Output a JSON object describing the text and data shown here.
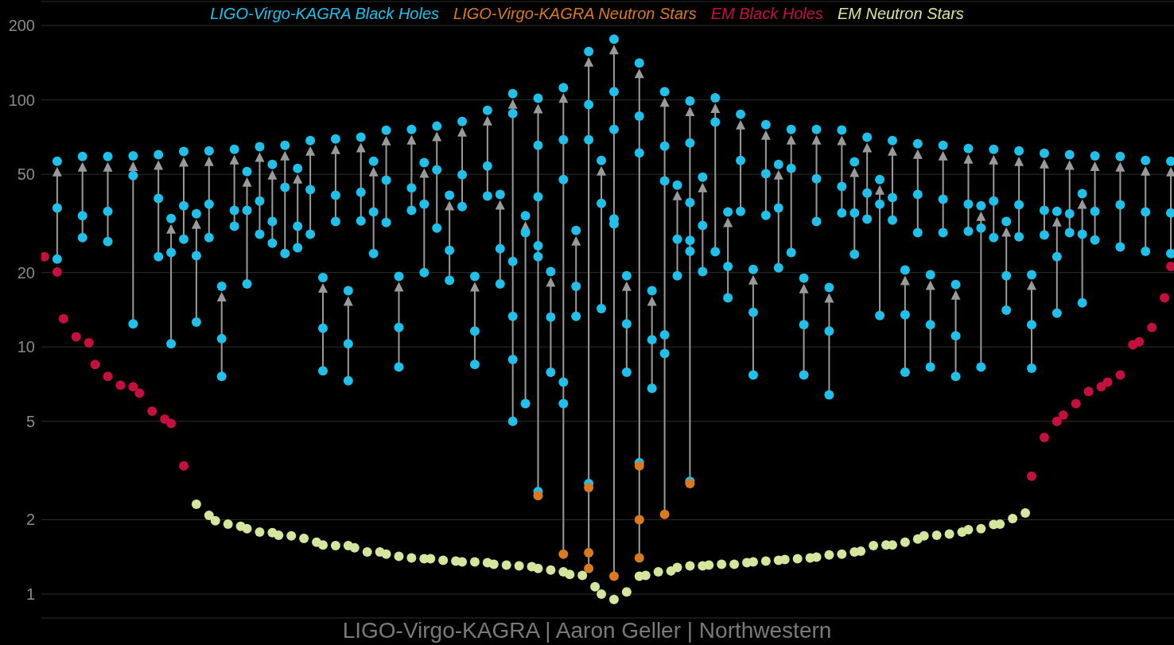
{
  "chart_data": {
    "type": "scatter",
    "log": "y",
    "ylim": [
      0.8,
      250
    ],
    "yticks": [
      1,
      2,
      5,
      10,
      20,
      50,
      100,
      200
    ],
    "tick_labels": "y",
    "grid": "y",
    "annotations": [
      "LIGO-Virgo-KAGRA | Aaron Geller | Northwestern"
    ],
    "categories": [
      null,
      null,
      null,
      null,
      null,
      null,
      null,
      null,
      null,
      null,
      null,
      null,
      null,
      null,
      null,
      null,
      null,
      null,
      null,
      null,
      null,
      null,
      null,
      null,
      null,
      null,
      null,
      null,
      null,
      null,
      null,
      null,
      null,
      null,
      null,
      null,
      null,
      null,
      null,
      null,
      null,
      null,
      null,
      null,
      null,
      null,
      null,
      null,
      null,
      null,
      null,
      null,
      null,
      null,
      null,
      null,
      null,
      null,
      null,
      null,
      null,
      null,
      null,
      null,
      null,
      null,
      null,
      null,
      null,
      null,
      null,
      null,
      null,
      null,
      null,
      null,
      null,
      null,
      null,
      null,
      null,
      null,
      null,
      null,
      null,
      null,
      null,
      null,
      null,
      null,
      null,
      null,
      null,
      null,
      null,
      null,
      null,
      null,
      null,
      null,
      null,
      null,
      null,
      null,
      null,
      null,
      null,
      null,
      null,
      null,
      null,
      null,
      null,
      null,
      null,
      null,
      null,
      null,
      null,
      null,
      null,
      null,
      null,
      null,
      null,
      null,
      null,
      null,
      null,
      null,
      null,
      null,
      null,
      null,
      null,
      null,
      null,
      null,
      null,
      null,
      null,
      null,
      null,
      null,
      null,
      null,
      null,
      null,
      null,
      null,
      null,
      null,
      null,
      null,
      null,
      null,
      null,
      null,
      null,
      null,
      null,
      null,
      null,
      null,
      null,
      null,
      null,
      null,
      null,
      null,
      null,
      null,
      null,
      null,
      null,
      null,
      null,
      null,
      null
    ],
    "series": [
      {
        "name": "LIGO-Virgo-KAGRA Black Holes",
        "color": "#1fc0ea",
        "values": [
          null,
          null,
          56.5,
          null,
          null,
          null,
          59,
          null,
          null,
          null,
          59,
          null,
          null,
          null,
          59.4,
          null,
          null,
          null,
          60,
          null,
          33.1,
          null,
          61.8,
          null,
          34.6,
          null,
          62.2,
          null,
          17.6,
          null,
          63.1,
          null,
          51.3,
          null,
          64.6,
          null,
          54.8,
          null,
          65.5,
          null,
          52.8,
          null,
          68.5,
          null,
          19.1,
          null,
          69.5,
          null,
          16.9,
          null,
          70.6,
          null,
          56.5,
          null,
          75.4,
          null,
          19.3,
          null,
          76,
          null,
          55.7,
          null,
          78.3,
          null,
          41.1,
          null,
          81.8,
          null,
          19.3,
          null,
          90.8,
          null,
          41.4,
          null,
          106,
          null,
          34,
          null,
          101.5,
          null,
          20.2,
          null,
          112,
          null,
          29.6,
          null,
          157,
          null,
          56.9,
          null,
          176,
          null,
          19.4,
          null,
          141,
          null,
          16.9,
          null,
          108,
          null,
          45.2,
          null,
          99,
          null,
          48.7,
          null,
          102,
          null,
          35.2,
          null,
          87.5,
          null,
          20.6,
          null,
          79.4,
          null,
          54.8,
          null,
          76,
          null,
          19,
          null,
          76,
          null,
          17.4,
          null,
          75.5,
          null,
          56.1,
          null,
          70.6,
          null,
          47.6,
          null,
          68.5,
          null,
          20.5,
          null,
          66.5,
          null,
          19.6,
          null,
          65.5,
          null,
          17.9,
          null,
          63.6,
          null,
          37.3,
          null,
          63.1,
          null,
          32.2,
          null,
          62.2,
          null,
          19.6,
          null,
          60.8,
          null,
          35.4,
          null,
          60,
          null,
          41.7,
          null,
          59.4,
          null,
          null,
          null,
          59,
          null,
          null,
          null,
          56.9,
          null,
          null,
          null,
          56.5
        ]
      },
      {
        "color": "#1fc0ea",
        "values": [
          null,
          null,
          36.5,
          null,
          null,
          null,
          34,
          null,
          null,
          null,
          35.4,
          null,
          null,
          null,
          49.4,
          null,
          null,
          null,
          39.9,
          null,
          24.1,
          null,
          37.3,
          null,
          23.4,
          null,
          37.8,
          null,
          10.8,
          null,
          35.7,
          null,
          35.7,
          null,
          39,
          null,
          32.2,
          null,
          44.3,
          null,
          30.8,
          null,
          43.3,
          null,
          11.9,
          null,
          41.1,
          null,
          10.3,
          null,
          42.3,
          null,
          35.2,
          null,
          47.3,
          null,
          12,
          null,
          44,
          null,
          37.8,
          null,
          52.1,
          null,
          24.6,
          null,
          49.8,
          null,
          11.6,
          null,
          54,
          null,
          25,
          null,
          88,
          null,
          29,
          null,
          65.5,
          null,
          13.2,
          null,
          69,
          null,
          17.6,
          null,
          95.7,
          null,
          38.1,
          null,
          108,
          null,
          12.4,
          null,
          86,
          null,
          10.7,
          null,
          65,
          null,
          27.3,
          null,
          67,
          null,
          31,
          null,
          81.3,
          null,
          21.2,
          null,
          56.9,
          null,
          13.8,
          null,
          50.2,
          null,
          36.5,
          null,
          52.8,
          null,
          12.3,
          null,
          48,
          null,
          11.6,
          null,
          44.6,
          null,
          34.9,
          null,
          42,
          null,
          37.8,
          null,
          40.2,
          null,
          13.5,
          null,
          41.4,
          null,
          12.3,
          null,
          39.6,
          null,
          11.1,
          null,
          37.8,
          null,
          30.3,
          null,
          39,
          null,
          19.4,
          null,
          37.6,
          null,
          12.3,
          null,
          35.7,
          null,
          23.2,
          null,
          34.6,
          null,
          28.6,
          null,
          35.4,
          null,
          null,
          null,
          37.6,
          null,
          null,
          null,
          35.2,
          null,
          null,
          null,
          34.9
        ]
      },
      {
        "color": "#1fc0ea",
        "values": [
          null,
          null,
          22.7,
          null,
          null,
          null,
          27.7,
          null,
          null,
          null,
          26.7,
          null,
          null,
          null,
          12.4,
          null,
          null,
          null,
          23.2,
          null,
          10.3,
          null,
          27.3,
          null,
          12.6,
          null,
          27.7,
          null,
          7.6,
          null,
          30.8,
          null,
          18,
          null,
          28.6,
          null,
          26.3,
          null,
          23.9,
          null,
          25.2,
          null,
          28.6,
          null,
          8,
          null,
          32.2,
          null,
          7.3,
          null,
          32.4,
          null,
          23.9,
          null,
          31.9,
          null,
          8.3,
          null,
          35.7,
          null,
          20,
          null,
          30.3,
          null,
          18.6,
          null,
          37,
          null,
          8.5,
          null,
          40.8,
          null,
          18,
          null,
          22.2,
          null,
          5.9,
          null,
          40.5,
          null,
          7.9,
          null,
          47.6,
          null,
          13.3,
          null,
          69,
          null,
          14.3,
          null,
          76,
          null,
          7.9,
          null,
          61,
          null,
          6.8,
          null,
          47,
          null,
          19.4,
          null,
          38.4,
          null,
          20.2,
          null,
          24.3,
          null,
          15.8,
          null,
          35.4,
          null,
          7.7,
          null,
          34.1,
          null,
          20.9,
          null,
          24.1,
          null,
          7.7,
          null,
          32.2,
          null,
          6.4,
          null,
          34.9,
          null,
          23.7,
          null,
          32.9,
          null,
          13.4,
          null,
          32.6,
          null,
          7.9,
          null,
          29,
          null,
          8.3,
          null,
          29,
          null,
          7.6,
          null,
          29.4,
          null,
          8.3,
          null,
          27.7,
          null,
          14.1,
          null,
          27.9,
          null,
          8.2,
          null,
          28.4,
          null,
          13.7,
          null,
          29,
          null,
          15.1,
          null,
          27.1,
          null,
          null,
          null,
          25.4,
          null,
          null,
          null,
          24.4,
          null,
          null,
          null,
          23.9
        ]
      },
      {
        "color": "#1fc0ea",
        "values": [
          null,
          null,
          null,
          null,
          null,
          null,
          null,
          null,
          null,
          null,
          null,
          null,
          null,
          null,
          null,
          null,
          null,
          null,
          null,
          null,
          null,
          null,
          null,
          null,
          null,
          null,
          null,
          null,
          null,
          null,
          null,
          null,
          null,
          null,
          null,
          null,
          null,
          null,
          null,
          null,
          null,
          null,
          null,
          null,
          null,
          null,
          null,
          null,
          null,
          null,
          null,
          null,
          null,
          null,
          null,
          null,
          null,
          null,
          null,
          null,
          null,
          null,
          null,
          null,
          null,
          null,
          null,
          null,
          null,
          null,
          null,
          null,
          null,
          null,
          13.3,
          null,
          null,
          null,
          25.7,
          null,
          null,
          null,
          7.2,
          null,
          null,
          null,
          2.8,
          null,
          null,
          null,
          33,
          null,
          null,
          null,
          3.4,
          null,
          null,
          null,
          11.2,
          null,
          null,
          null,
          27,
          null,
          null,
          null,
          null,
          null,
          null,
          null,
          null,
          null,
          null,
          null,
          null,
          null,
          null,
          null,
          null,
          null,
          null,
          null,
          null,
          null,
          null,
          null,
          null,
          null,
          null,
          null,
          null,
          null,
          null,
          null,
          null,
          null,
          null,
          null,
          null,
          null,
          null,
          null,
          null,
          null,
          null,
          null,
          null,
          null,
          null,
          null,
          null,
          null,
          null,
          null,
          null,
          null,
          null,
          null,
          null,
          null,
          null,
          null,
          null,
          null,
          null,
          null,
          null,
          null,
          null,
          null,
          null,
          null,
          null,
          null,
          null,
          null,
          null,
          null,
          null
        ]
      },
      {
        "color": "#1fc0ea",
        "values": [
          null,
          null,
          null,
          null,
          null,
          null,
          null,
          null,
          null,
          null,
          null,
          null,
          null,
          null,
          null,
          null,
          null,
          null,
          null,
          null,
          null,
          null,
          null,
          null,
          null,
          null,
          null,
          null,
          null,
          null,
          null,
          null,
          null,
          null,
          null,
          null,
          null,
          null,
          null,
          null,
          null,
          null,
          null,
          null,
          null,
          null,
          null,
          null,
          null,
          null,
          null,
          null,
          null,
          null,
          null,
          null,
          null,
          null,
          null,
          null,
          null,
          null,
          null,
          null,
          null,
          null,
          null,
          null,
          null,
          null,
          null,
          null,
          null,
          null,
          8.9,
          null,
          null,
          null,
          23.2,
          null,
          null,
          null,
          5.9,
          null,
          null,
          null,
          null,
          null,
          null,
          null,
          31.5,
          null,
          null,
          null,
          null,
          null,
          null,
          null,
          9.4,
          null,
          null,
          null,
          24.4,
          null,
          null,
          null,
          null,
          null,
          null,
          null,
          null,
          null,
          null,
          null,
          null,
          null,
          null,
          null,
          null,
          null,
          null,
          null,
          null,
          null,
          null,
          null,
          null,
          null,
          null,
          null,
          null,
          null,
          null,
          null,
          null,
          null,
          null,
          null,
          null,
          null,
          null,
          null,
          null,
          null,
          null,
          null,
          null,
          null,
          null,
          null,
          null,
          null,
          null,
          null,
          null,
          null,
          null,
          null,
          null,
          null,
          null,
          null,
          null,
          null,
          null,
          null,
          null,
          null,
          null,
          null,
          null,
          null,
          null,
          null,
          null,
          null,
          null,
          null,
          null
        ]
      },
      {
        "color": "#1fc0ea",
        "values": [
          null,
          null,
          null,
          null,
          null,
          null,
          null,
          null,
          null,
          null,
          null,
          null,
          null,
          null,
          null,
          null,
          null,
          null,
          null,
          null,
          null,
          null,
          null,
          null,
          null,
          null,
          null,
          null,
          null,
          null,
          null,
          null,
          null,
          null,
          null,
          null,
          null,
          null,
          null,
          null,
          null,
          null,
          null,
          null,
          null,
          null,
          null,
          null,
          null,
          null,
          null,
          null,
          null,
          null,
          null,
          null,
          null,
          null,
          null,
          null,
          null,
          null,
          null,
          null,
          null,
          null,
          null,
          null,
          null,
          null,
          null,
          null,
          null,
          null,
          5,
          null,
          null,
          null,
          2.6,
          null,
          null,
          null,
          null,
          null,
          null,
          null,
          null,
          null,
          null,
          null,
          null,
          null,
          null,
          null,
          null,
          null,
          null,
          null,
          null,
          null,
          null,
          null,
          2.86,
          null,
          null,
          null,
          null,
          null,
          null,
          null,
          null,
          null,
          null,
          null,
          null,
          null,
          null,
          null,
          null,
          null,
          null,
          null,
          null,
          null,
          null,
          null,
          null,
          null,
          null,
          null,
          null,
          null,
          null,
          null,
          null,
          null,
          null,
          null,
          null,
          null,
          null,
          null,
          null,
          null,
          null,
          null,
          null,
          null,
          null,
          null,
          null,
          null,
          null,
          null,
          null,
          null,
          null,
          null,
          null,
          null,
          null,
          null,
          null,
          null,
          null,
          null,
          null,
          null,
          null,
          null,
          null,
          null,
          null,
          null,
          null,
          null,
          null,
          null,
          null
        ]
      },
      {
        "name": "LIGO-Virgo-KAGRA Neutron Stars",
        "color": "#d97a1e",
        "values": [
          null,
          null,
          null,
          null,
          null,
          null,
          null,
          null,
          null,
          null,
          null,
          null,
          null,
          null,
          null,
          null,
          null,
          null,
          null,
          null,
          null,
          null,
          null,
          null,
          null,
          null,
          null,
          null,
          null,
          null,
          null,
          null,
          null,
          null,
          null,
          null,
          null,
          null,
          null,
          null,
          null,
          null,
          null,
          null,
          null,
          null,
          null,
          null,
          null,
          null,
          null,
          null,
          null,
          null,
          null,
          null,
          null,
          null,
          null,
          null,
          null,
          null,
          null,
          null,
          null,
          null,
          null,
          null,
          null,
          null,
          null,
          null,
          null,
          null,
          null,
          null,
          null,
          null,
          2.5,
          null,
          null,
          null,
          1.45,
          null,
          null,
          null,
          2.7,
          null,
          null,
          null,
          1.18,
          null,
          null,
          null,
          3.3,
          null,
          null,
          null,
          2.1,
          null,
          null,
          null,
          2.8,
          null,
          null,
          null,
          null,
          null,
          null,
          null,
          null,
          null,
          null,
          null,
          null,
          null,
          null,
          null,
          null,
          null,
          null,
          null,
          null,
          null,
          null,
          null,
          null,
          null,
          null,
          null,
          null,
          null,
          null,
          null,
          null,
          null,
          null,
          null,
          null,
          null,
          null,
          null,
          null,
          null,
          null,
          null,
          null,
          null,
          null,
          null,
          null,
          null,
          null,
          null,
          null,
          null,
          null,
          null,
          null,
          null,
          null,
          null,
          null,
          null,
          null,
          null,
          null,
          null,
          null,
          null,
          null,
          null,
          null,
          null,
          null,
          null,
          null,
          null,
          null
        ]
      },
      {
        "color": "#d97a1e",
        "values": [
          null,
          null,
          null,
          null,
          null,
          null,
          null,
          null,
          null,
          null,
          null,
          null,
          null,
          null,
          null,
          null,
          null,
          null,
          null,
          null,
          null,
          null,
          null,
          null,
          null,
          null,
          null,
          null,
          null,
          null,
          null,
          null,
          null,
          null,
          null,
          null,
          null,
          null,
          null,
          null,
          null,
          null,
          null,
          null,
          null,
          null,
          null,
          null,
          null,
          null,
          null,
          null,
          null,
          null,
          null,
          null,
          null,
          null,
          null,
          null,
          null,
          null,
          null,
          null,
          null,
          null,
          null,
          null,
          null,
          null,
          null,
          null,
          null,
          null,
          null,
          null,
          null,
          null,
          null,
          null,
          null,
          null,
          null,
          null,
          null,
          null,
          1.47,
          null,
          null,
          null,
          null,
          null,
          null,
          null,
          2,
          null,
          null,
          null,
          null,
          null,
          null,
          null,
          null,
          null,
          null,
          null,
          null,
          null,
          null,
          null,
          null,
          null,
          null,
          null,
          null,
          null,
          null,
          null,
          null,
          null,
          null,
          null,
          null,
          null,
          null,
          null,
          null,
          null,
          null,
          null,
          null,
          null,
          null,
          null,
          null,
          null,
          null,
          null,
          null,
          null,
          null,
          null,
          null,
          null,
          null,
          null,
          null,
          null,
          null,
          null,
          null,
          null,
          null,
          null,
          null,
          null,
          null,
          null,
          null,
          null,
          null,
          null,
          null,
          null,
          null,
          null,
          null,
          null,
          null,
          null,
          null,
          null,
          null,
          null,
          null,
          null,
          null,
          null,
          null
        ]
      },
      {
        "color": "#d97a1e",
        "values": [
          null,
          null,
          null,
          null,
          null,
          null,
          null,
          null,
          null,
          null,
          null,
          null,
          null,
          null,
          null,
          null,
          null,
          null,
          null,
          null,
          null,
          null,
          null,
          null,
          null,
          null,
          null,
          null,
          null,
          null,
          null,
          null,
          null,
          null,
          null,
          null,
          null,
          null,
          null,
          null,
          null,
          null,
          null,
          null,
          null,
          null,
          null,
          null,
          null,
          null,
          null,
          null,
          null,
          null,
          null,
          null,
          null,
          null,
          null,
          null,
          null,
          null,
          null,
          null,
          null,
          null,
          null,
          null,
          null,
          null,
          null,
          null,
          null,
          null,
          null,
          null,
          null,
          null,
          null,
          null,
          null,
          null,
          null,
          null,
          null,
          null,
          1.27,
          null,
          null,
          null,
          null,
          null,
          null,
          null,
          1.4,
          null,
          null,
          null,
          null,
          null,
          null,
          null,
          null,
          null,
          null,
          null,
          null,
          null,
          null,
          null,
          null,
          null,
          null,
          null,
          null,
          null,
          null,
          null,
          null,
          null,
          null,
          null,
          null,
          null,
          null,
          null,
          null,
          null,
          null,
          null,
          null,
          null,
          null,
          null,
          null,
          null,
          null,
          null,
          null,
          null,
          null,
          null,
          null,
          null,
          null,
          null,
          null,
          null,
          null,
          null,
          null,
          null,
          null,
          null,
          null,
          null,
          null,
          null,
          null,
          null,
          null,
          null,
          null,
          null,
          null,
          null,
          null,
          null,
          null,
          null,
          null,
          null,
          null,
          null,
          null,
          null,
          null,
          null,
          null
        ]
      },
      {
        "name": "EM Black Holes",
        "color": "#c3103c",
        "values": [
          23.2,
          null,
          20.1,
          13,
          null,
          11,
          null,
          10.4,
          8.5,
          null,
          7.6,
          null,
          7,
          null,
          6.9,
          6.5,
          null,
          5.5,
          null,
          5.1,
          4.9,
          null,
          3.3,
          null,
          null,
          null,
          null,
          null,
          null,
          null,
          null,
          null,
          null,
          null,
          null,
          null,
          null,
          null,
          null,
          null,
          null,
          null,
          null,
          null,
          null,
          null,
          null,
          null,
          null,
          null,
          null,
          null,
          null,
          null,
          null,
          null,
          null,
          null,
          null,
          null,
          null,
          null,
          null,
          null,
          null,
          null,
          null,
          null,
          null,
          null,
          null,
          null,
          null,
          null,
          null,
          null,
          null,
          null,
          null,
          null,
          null,
          null,
          null,
          null,
          null,
          null,
          null,
          null,
          null,
          null,
          null,
          null,
          null,
          null,
          null,
          null,
          null,
          null,
          null,
          null,
          null,
          null,
          null,
          null,
          null,
          null,
          null,
          null,
          null,
          null,
          null,
          null,
          null,
          null,
          null,
          null,
          null,
          null,
          null,
          null,
          null,
          null,
          null,
          null,
          null,
          null,
          null,
          null,
          null,
          null,
          null,
          null,
          null,
          null,
          null,
          null,
          null,
          null,
          null,
          null,
          null,
          null,
          null,
          null,
          null,
          null,
          null,
          null,
          null,
          null,
          null,
          null,
          null,
          null,
          null,
          null,
          3,
          null,
          4.3,
          null,
          5,
          5.3,
          null,
          5.9,
          null,
          6.6,
          null,
          6.9,
          7.2,
          null,
          7.7,
          null,
          10.2,
          10.5,
          null,
          12,
          null,
          15.8,
          21.2
        ]
      },
      {
        "name": "EM Neutron Stars",
        "color": "#d3e69c",
        "values": [
          null,
          null,
          null,
          null,
          null,
          null,
          null,
          null,
          null,
          null,
          null,
          null,
          null,
          null,
          null,
          null,
          null,
          null,
          null,
          null,
          null,
          null,
          null,
          null,
          2.31,
          null,
          2.08,
          1.98,
          null,
          1.92,
          null,
          1.88,
          1.84,
          null,
          1.78,
          null,
          1.77,
          1.73,
          null,
          1.72,
          null,
          1.68,
          null,
          1.62,
          1.58,
          null,
          1.57,
          null,
          1.57,
          1.54,
          null,
          1.48,
          null,
          1.48,
          1.45,
          null,
          1.42,
          null,
          1.4,
          null,
          1.39,
          1.39,
          null,
          1.37,
          null,
          1.36,
          1.35,
          null,
          1.35,
          null,
          1.34,
          1.32,
          null,
          1.31,
          null,
          1.3,
          null,
          1.29,
          1.27,
          null,
          1.25,
          null,
          1.23,
          1.2,
          null,
          1.19,
          null,
          1.07,
          1,
          null,
          0.95,
          null,
          1.02,
          null,
          1.18,
          1.19,
          null,
          1.23,
          null,
          1.24,
          1.28,
          null,
          1.3,
          null,
          1.3,
          1.31,
          null,
          1.32,
          null,
          1.32,
          null,
          1.34,
          1.35,
          null,
          1.36,
          null,
          1.37,
          1.38,
          null,
          1.39,
          null,
          1.4,
          1.41,
          null,
          1.44,
          null,
          1.45,
          null,
          1.48,
          1.49,
          null,
          1.57,
          null,
          1.58,
          1.58,
          null,
          1.62,
          null,
          1.67,
          1.72,
          null,
          1.73,
          null,
          1.75,
          null,
          1.78,
          1.82,
          null,
          1.84,
          null,
          1.91,
          1.92,
          null,
          2.02,
          null,
          2.13,
          null,
          null,
          null,
          null,
          null,
          null,
          null,
          null,
          null,
          null,
          null,
          null,
          null,
          null,
          null,
          null,
          null,
          null,
          null,
          null,
          null,
          null,
          null
        ]
      }
    ]
  }
}
